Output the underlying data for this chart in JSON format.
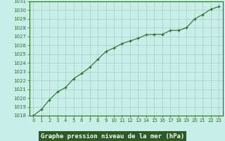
{
  "x": [
    0,
    1,
    2,
    3,
    4,
    5,
    6,
    7,
    8,
    9,
    10,
    11,
    12,
    13,
    14,
    15,
    16,
    17,
    18,
    19,
    20,
    21,
    22,
    23
  ],
  "y": [
    1018.0,
    1018.7,
    1019.8,
    1020.7,
    1021.2,
    1022.2,
    1022.8,
    1023.5,
    1024.4,
    1025.3,
    1025.7,
    1026.2,
    1026.5,
    1026.8,
    1027.2,
    1027.25,
    1027.25,
    1027.7,
    1027.7,
    1028.0,
    1029.0,
    1029.5,
    1030.1,
    1030.4
  ],
  "line_color": "#2d6a2d",
  "marker": "+",
  "marker_color": "#2d6a2d",
  "bg_color": "#c8eee8",
  "grid_color": "#a8ccc4",
  "xlabel": "Graphe pression niveau de la mer (hPa)",
  "xlabel_color": "#ffffff",
  "xlabel_bg": "#2d5a27",
  "xlim": [
    -0.5,
    23.5
  ],
  "ylim": [
    1018,
    1031
  ],
  "yticks": [
    1018,
    1019,
    1020,
    1021,
    1022,
    1023,
    1024,
    1025,
    1026,
    1027,
    1028,
    1029,
    1030,
    1031
  ],
  "xticks": [
    0,
    1,
    2,
    3,
    4,
    5,
    6,
    7,
    8,
    9,
    10,
    11,
    12,
    13,
    14,
    15,
    16,
    17,
    18,
    19,
    20,
    21,
    22,
    23
  ],
  "tick_fontsize": 5.0,
  "xlabel_fontsize": 6.5,
  "axis_color": "#2d6a2d",
  "spine_color": "#2d6a2d"
}
